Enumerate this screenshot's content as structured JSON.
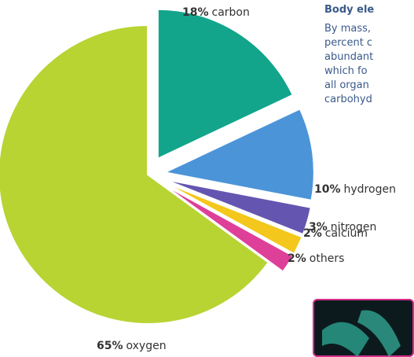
{
  "chart_data": {
    "type": "pie",
    "categories": [
      "carbon",
      "hydrogen",
      "nitrogen",
      "calcium",
      "others",
      "oxygen"
    ],
    "values": [
      18,
      10,
      3,
      2,
      2,
      65
    ],
    "value_labels": [
      "18%",
      "10%",
      "3%",
      "2%",
      "2%",
      "65%"
    ],
    "colors": [
      "#12a58c",
      "#4c94d8",
      "#6456b0",
      "#f4c71c",
      "#de3f98",
      "#b7d433"
    ]
  },
  "sidebar": {
    "title": "Body ele",
    "lines": [
      "By mass,",
      "percent c",
      "abundant",
      "which fo",
      "all organ",
      "carbohyd"
    ]
  }
}
